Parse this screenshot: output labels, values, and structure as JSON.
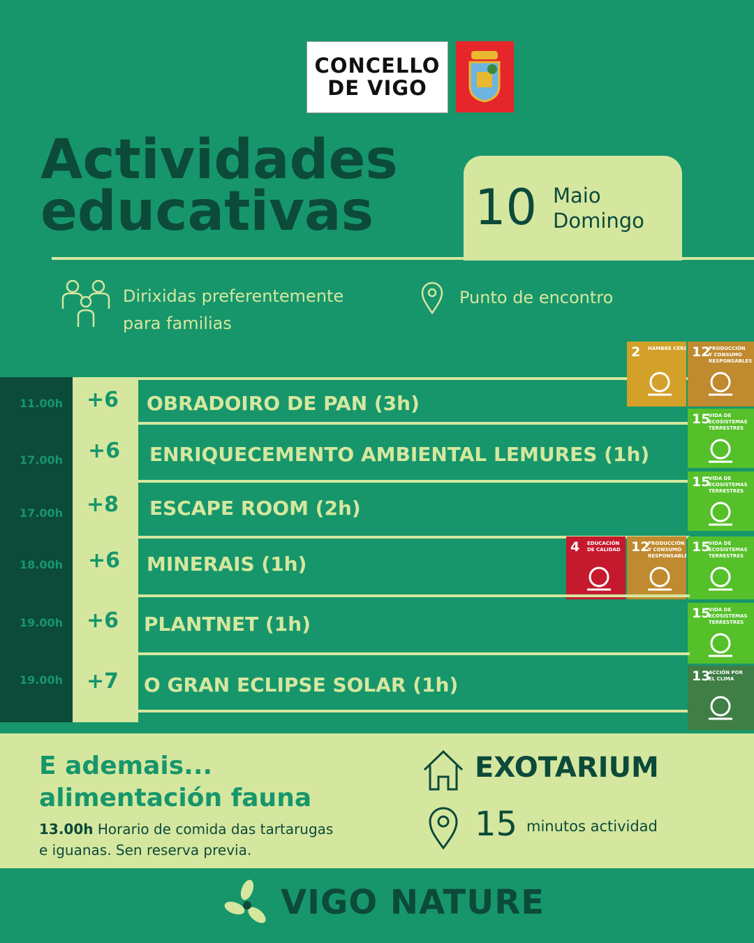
{
  "header": {
    "logo_lines": [
      "CONCELLO",
      "DE VIGO"
    ],
    "title_lines": [
      "Actividades",
      "educativas"
    ],
    "date": {
      "day": "10",
      "month": "Maio",
      "weekday": "Domingo"
    }
  },
  "info": {
    "audience_lines": [
      "Dirixidas preferentemente",
      "para familias"
    ],
    "meeting_point": "Punto de encontro"
  },
  "activities": [
    {
      "time": "11.00h",
      "age": "+6",
      "name": "OBRADOIRO DE PAN (3h)",
      "sdgs": [
        {
          "number": "2",
          "label": "HAMBRE CERO",
          "color": "#d3a029"
        },
        {
          "number": "12",
          "label": "PRODUCCIÓN Y CONSUMO RESPONSABLES",
          "color": "#c08a2e"
        }
      ]
    },
    {
      "time": "17.00h",
      "age": "+6",
      "name": "ENRIQUECEMENTO AMBIENTAL LEMURES (1h)",
      "sdgs": [
        {
          "number": "15",
          "label": "VIDA DE ECOSISTEMAS TERRESTRES",
          "color": "#56c02b"
        }
      ]
    },
    {
      "time": "17.00h",
      "age": "+8",
      "name": "ESCAPE ROOM (2h)",
      "sdgs": [
        {
          "number": "15",
          "label": "VIDA DE ECOSISTEMAS TERRESTRES",
          "color": "#56c02b"
        }
      ]
    },
    {
      "time": "18.00h",
      "age": "+6",
      "name": "MINERAIS (1h)",
      "sdgs": [
        {
          "number": "4",
          "label": "EDUCACIÓN DE CALIDAD",
          "color": "#c5192d"
        },
        {
          "number": "12",
          "label": "PRODUCCIÓN Y CONSUMO RESPONSABLES",
          "color": "#c08a2e"
        },
        {
          "number": "15",
          "label": "VIDA DE ECOSISTEMAS TERRESTRES",
          "color": "#56c02b"
        }
      ]
    },
    {
      "time": "19.00h",
      "age": "+6",
      "name": "PLANTNET (1h)",
      "sdgs": [
        {
          "number": "15",
          "label": "VIDA DE ECOSISTEMAS TERRESTRES",
          "color": "#56c02b"
        }
      ]
    },
    {
      "time": "19.00h",
      "age": "+7",
      "name": "O GRAN ECLIPSE SOLAR (1h)",
      "sdgs": [
        {
          "number": "13",
          "label": "ACCIÓN POR EL CLIMA",
          "color": "#3f7e44"
        }
      ]
    }
  ],
  "extra": {
    "heading_lines": [
      "E ademais...",
      "alimentación fauna"
    ],
    "time": "13.00h",
    "description_lines": [
      "Horario de comida das tartarugas",
      "e iguanas. Sen reserva previa."
    ],
    "place": "EXOTARIUM",
    "duration": "15",
    "duration_label": "minutos actividad"
  },
  "footer": {
    "brand": "VIGO NATURE"
  }
}
